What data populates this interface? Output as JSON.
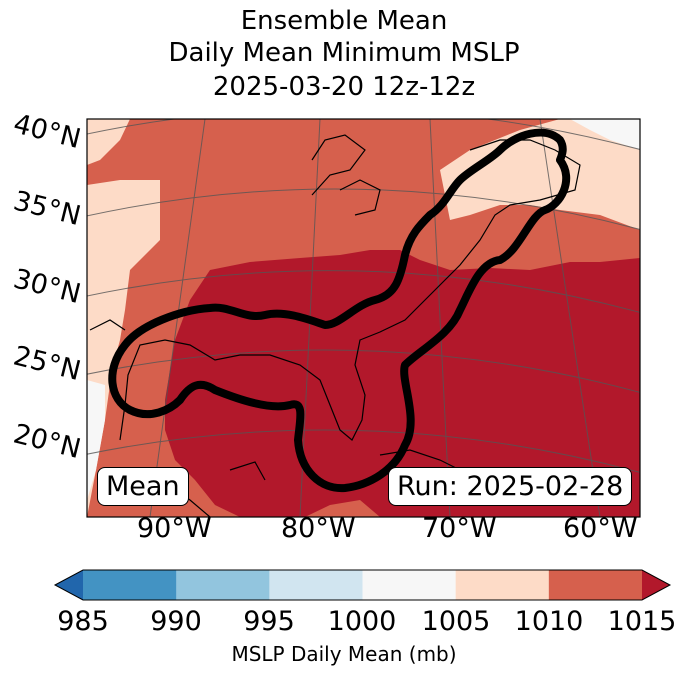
{
  "title": {
    "line1": "Ensemble Mean",
    "line2": "Daily Mean Minimum MSLP",
    "line3": "2025-03-20 12z-12z"
  },
  "map": {
    "lat_labels": [
      "40°N",
      "35°N",
      "30°N",
      "25°N",
      "20°N"
    ],
    "lon_labels": [
      "90°W",
      "80°W",
      "70°W",
      "60°W"
    ],
    "mean_label": "Mean",
    "run_label": "Run: 2025-02-28",
    "colors": {
      "c1005_1010": "#fddbc7",
      "c1010_1015": "#d6604d",
      "c_gt1015": "#b2182b",
      "c1000_1005": "#f7f7f7",
      "contour": "#000000"
    }
  },
  "colorbar": {
    "ticks": [
      "985",
      "990",
      "995",
      "1000",
      "1005",
      "1010",
      "1015"
    ],
    "label": "MSLP Daily Mean (mb)",
    "colors": [
      "#2166ac",
      "#4393c3",
      "#92c5de",
      "#d1e5f0",
      "#f7f7f7",
      "#fddbc7",
      "#d6604d",
      "#b2182b"
    ]
  }
}
